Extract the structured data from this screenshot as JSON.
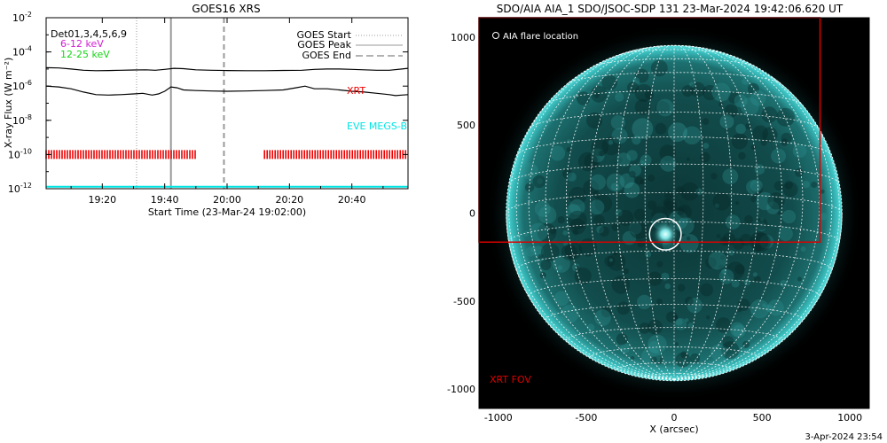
{
  "chart_data": [
    {
      "type": "line",
      "title": "GOES16 XRS",
      "xlabel": "Start Time (23-Mar-24 19:02:00)",
      "ylabel": "X-ray Flux (W m⁻²)",
      "xlim_minutes_after_1900": [
        2,
        118
      ],
      "ylog": true,
      "ylim": [
        1e-12,
        0.01
      ],
      "x_ticks": [
        "19:20",
        "19:40",
        "20:00",
        "20:20",
        "20:40"
      ],
      "x_tick_minutes": [
        20,
        40,
        60,
        80,
        100
      ],
      "y_ticks": [
        {
          "base": "10",
          "exp": "-2",
          "value": 0.01
        },
        {
          "base": "10",
          "exp": "-4",
          "value": 0.0001
        },
        {
          "base": "10",
          "exp": "-6",
          "value": 1e-06
        },
        {
          "base": "10",
          "exp": "-8",
          "value": 1e-08
        },
        {
          "base": "10",
          "exp": "-10",
          "value": 1e-10
        },
        {
          "base": "10",
          "exp": "-12",
          "value": 1e-12
        }
      ],
      "label_det": "Det01,3,4,5,6,9",
      "label_low": "6-12 keV",
      "label_high": "12-25 keV",
      "label_xrt": "XRT",
      "label_eve": "EVE MEGS-B",
      "legend": [
        {
          "label": "GOES Start",
          "style": "dotted"
        },
        {
          "label": "GOES Peak",
          "style": "solid"
        },
        {
          "label": "GOES End",
          "style": "dashed"
        }
      ],
      "markers": {
        "goes_start": 31,
        "goes_peak": 42,
        "goes_end": 59
      },
      "series": [
        {
          "style": "long",
          "x": [
            2,
            6,
            10,
            14,
            18,
            22,
            26,
            30,
            34,
            37,
            40,
            43,
            46,
            50,
            55,
            60,
            66,
            72,
            78,
            84,
            88,
            92,
            96,
            100,
            104,
            108,
            112,
            116,
            118
          ],
          "y": [
            1.2e-05,
            1.15e-05,
            1e-05,
            8.5e-06,
            8e-06,
            8.2e-06,
            8.5e-06,
            8.8e-06,
            9e-06,
            8.5e-06,
            9.5e-06,
            1.1e-05,
            1.05e-05,
            9e-06,
            8.5e-06,
            8.2e-06,
            8e-06,
            8e-06,
            8.3e-06,
            8.5e-06,
            9.5e-06,
            1e-05,
            1e-05,
            9.5e-06,
            9e-06,
            8.5e-06,
            8.5e-06,
            1e-05,
            1.1e-05
          ]
        },
        {
          "style": "short",
          "x": [
            2,
            6,
            10,
            14,
            18,
            22,
            26,
            30,
            33,
            36,
            38,
            40,
            42,
            44,
            46,
            50,
            55,
            60,
            66,
            72,
            78,
            82,
            85,
            88,
            92,
            96,
            100,
            104,
            108,
            112,
            114,
            116,
            118
          ],
          "y": [
            1e-06,
            9e-07,
            7e-07,
            4.5e-07,
            3.2e-07,
            3e-07,
            3.2e-07,
            3.5e-07,
            3.8e-07,
            3e-07,
            3.5e-07,
            5e-07,
            9e-07,
            8e-07,
            6e-07,
            5.5e-07,
            5.2e-07,
            5e-07,
            5.2e-07,
            5.5e-07,
            6e-07,
            8e-07,
            1e-06,
            7e-07,
            7e-07,
            6e-07,
            5e-07,
            4.5e-07,
            3.8e-07,
            3.2e-07,
            2.8e-07,
            3e-07,
            3.2e-07
          ]
        },
        {
          "style": "floor",
          "x": [
            2,
            118
          ],
          "y": [
            1.3e-12,
            1.3e-12
          ]
        }
      ],
      "xrt_coverage_minutes": [
        [
          2,
          50
        ],
        [
          72,
          118
        ]
      ],
      "xrt_coverage_level": 1e-10,
      "colors": {
        "low": "#d21ed2",
        "high": "#18d418",
        "xrt": "#ee0000",
        "eve": "#00e5e5",
        "marker": "#999999"
      }
    },
    {
      "type": "scatter",
      "title": "SDO/AIA AIA_1 SDO/JSOC-SDP 131 23-Mar-2024 19:42:06.620 UT",
      "xlabel": "X (arcsec)",
      "ylabel": "",
      "xlim": [
        -1110,
        1110
      ],
      "ylim": [
        -1110,
        1110
      ],
      "x_ticks": [
        "-1000",
        "-500",
        "0",
        "500",
        "1000"
      ],
      "x_tick_values": [
        -1000,
        -500,
        0,
        500,
        1000
      ],
      "y_ticks": [
        "1000",
        "500",
        "0",
        "-500",
        "-1000"
      ],
      "y_tick_values": [
        1000,
        500,
        0,
        -500,
        -1000
      ],
      "solar_radius": 955,
      "flare_location": {
        "x": -50,
        "y": -120,
        "radius": 90
      },
      "xrt_fov": {
        "x0": -1110,
        "x1": 830,
        "y0": -165,
        "y1": 1110
      },
      "legend_flare": "AIA flare location",
      "label_xrt_fov": "XRT FOV",
      "colors": {
        "disk": "#0f4a4a",
        "limb": "#35c7c7",
        "fov": "#dd0000"
      }
    }
  ],
  "footer": {
    "timestamp": "3-Apr-2024 23:54"
  }
}
